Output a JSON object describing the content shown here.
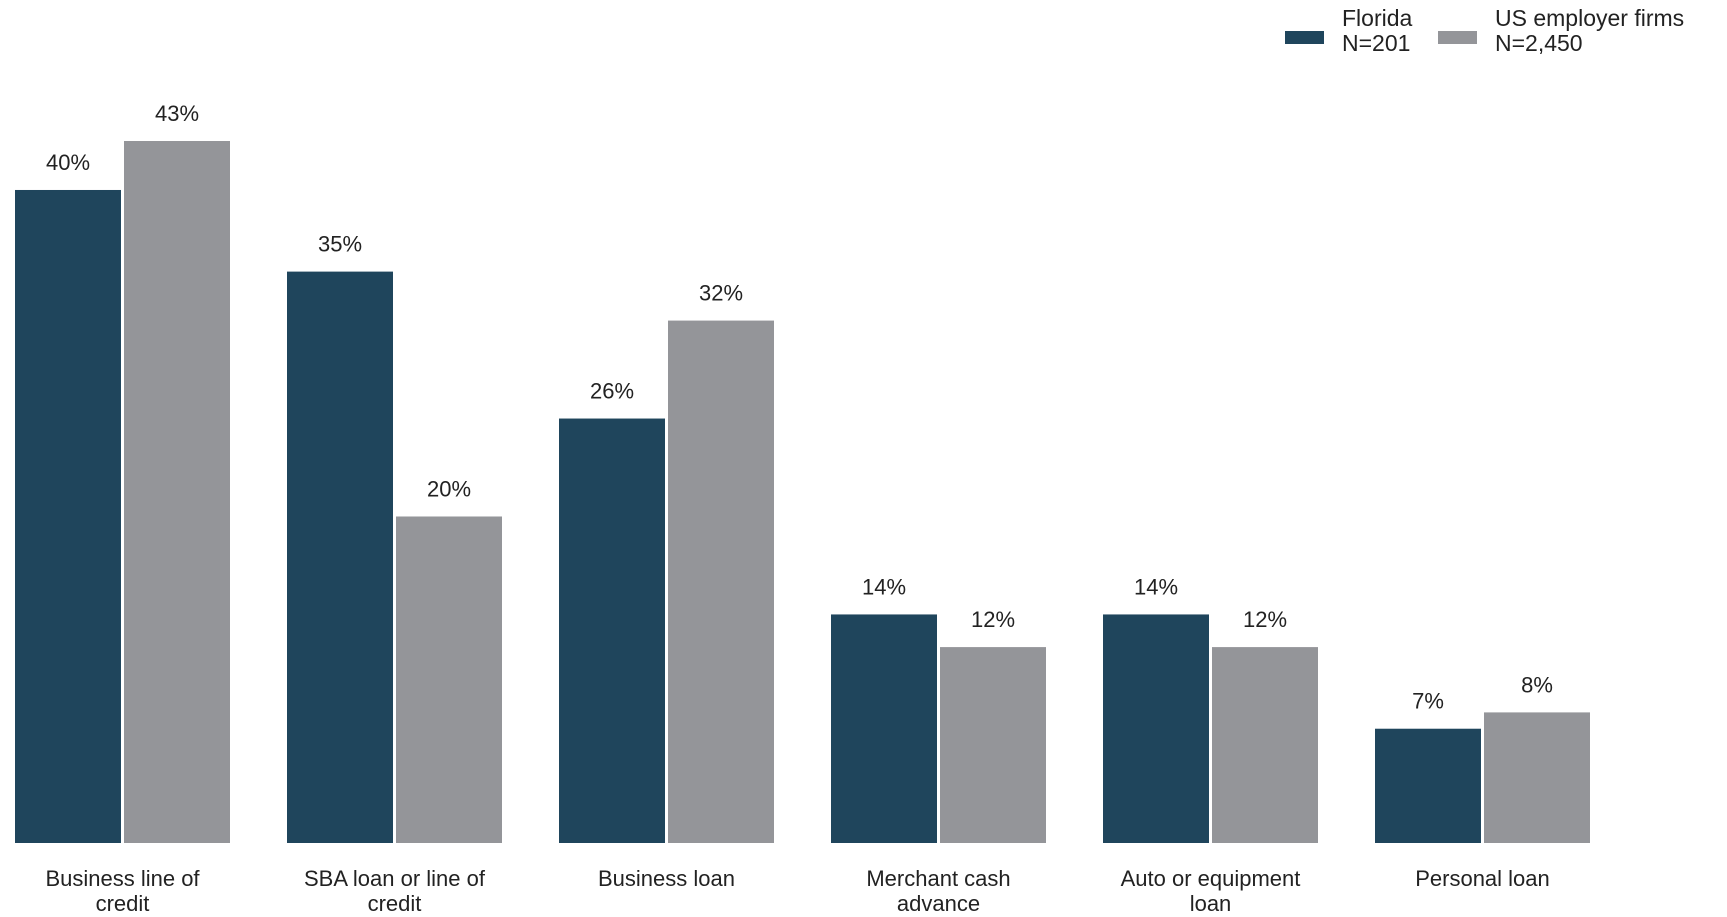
{
  "chart_data": {
    "type": "bar",
    "categories": [
      "Business line of credit",
      "SBA loan or line of credit",
      "Business loan",
      "Merchant cash advance",
      "Auto or equipment loan",
      "Personal loan"
    ],
    "series": [
      {
        "name": "Florida\nN=201",
        "color": "#1f455c",
        "values": [
          40,
          35,
          26,
          14,
          14,
          7
        ],
        "value_labels": [
          "40%",
          "35%",
          "26%",
          "14%",
          "14%",
          "7%"
        ]
      },
      {
        "name": "US employer firms\nN=2,450",
        "color": "#949599",
        "values": [
          43,
          20,
          32,
          12,
          12,
          8
        ],
        "value_labels": [
          "43%",
          "20%",
          "32%",
          "12%",
          "12%",
          "8%"
        ]
      }
    ],
    "legend": "top-right"
  }
}
